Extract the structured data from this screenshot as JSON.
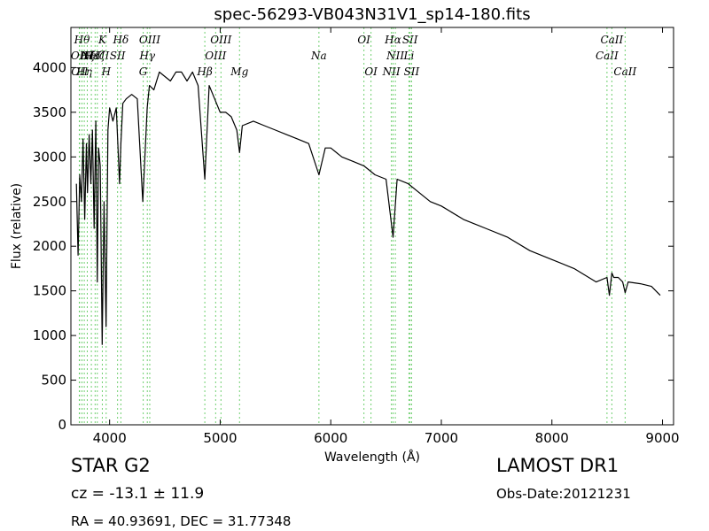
{
  "title": "spec-56293-VB043N31V1_sp14-180.fits",
  "info": {
    "object_class": "STAR   G2",
    "cz": "cz = -13.1 ± 11.9",
    "radec": "RA = 40.93691, DEC = 31.77348",
    "survey": "LAMOST DR1",
    "obs_date": "Obs-Date:20121231"
  },
  "chart_data": {
    "type": "line",
    "xlabel": "Wavelength (Å)",
    "ylabel": "Flux (relative)",
    "xlim": [
      3650,
      9100
    ],
    "ylim": [
      0,
      4450
    ],
    "xticks": [
      4000,
      5000,
      6000,
      7000,
      8000,
      9000
    ],
    "yticks": [
      0,
      500,
      1000,
      1500,
      2000,
      2500,
      3000,
      3500,
      4000
    ],
    "colors": {
      "spectrum": "#000000",
      "line_markers": "#6fcf6f"
    },
    "grid": false,
    "series": [
      {
        "x": [
          3700,
          3715,
          3730,
          3745,
          3760,
          3775,
          3790,
          3800,
          3815,
          3830,
          3845,
          3860,
          3875,
          3889,
          3900,
          3915,
          3933,
          3950,
          3968,
          3985,
          4000,
          4030,
          4060,
          4090,
          4102,
          4120,
          4150,
          4200,
          4250,
          4300,
          4340,
          4360,
          4400,
          4450,
          4500,
          4550,
          4600,
          4650,
          4700,
          4750,
          4800,
          4861,
          4900,
          4950,
          5000,
          5050,
          5100,
          5150,
          5175,
          5200,
          5300,
          5400,
          5500,
          5600,
          5700,
          5800,
          5893,
          5950,
          6000,
          6100,
          6200,
          6300,
          6400,
          6500,
          6563,
          6600,
          6700,
          6800,
          6900,
          7000,
          7200,
          7400,
          7600,
          7800,
          8000,
          8200,
          8400,
          8498,
          8520,
          8542,
          8560,
          8600,
          8640,
          8662,
          8690,
          8800,
          8900,
          8980
        ],
        "y": [
          2700,
          1900,
          2800,
          2500,
          3200,
          2300,
          3150,
          2600,
          3250,
          2700,
          3300,
          2200,
          3400,
          1600,
          3100,
          2900,
          900,
          2500,
          1100,
          3300,
          3550,
          3400,
          3550,
          2700,
          3150,
          3600,
          3650,
          3700,
          3650,
          2500,
          3550,
          3800,
          3750,
          3950,
          3900,
          3850,
          3950,
          3950,
          3850,
          3950,
          3800,
          2750,
          3800,
          3650,
          3500,
          3500,
          3450,
          3300,
          3050,
          3350,
          3400,
          3350,
          3300,
          3250,
          3200,
          3150,
          2800,
          3100,
          3100,
          3000,
          2950,
          2900,
          2800,
          2750,
          2100,
          2750,
          2700,
          2600,
          2500,
          2450,
          2300,
          2200,
          2100,
          1950,
          1850,
          1750,
          1600,
          1650,
          1450,
          1700,
          1650,
          1650,
          1600,
          1480,
          1600,
          1580,
          1550,
          1450
        ]
      }
    ],
    "line_markers": [
      {
        "wavelength": 3726,
        "label": "OII",
        "row": 1
      },
      {
        "wavelength": 3729,
        "label": "OII",
        "row": 2
      },
      {
        "wavelength": 3750,
        "label": "Hθ",
        "row": 0
      },
      {
        "wavelength": 3771,
        "label": "Hη",
        "row": 2
      },
      {
        "wavelength": 3798,
        "label": "Hζ",
        "row": 1
      },
      {
        "wavelength": 3835,
        "label": "Hε",
        "row": 1
      },
      {
        "wavelength": 3869,
        "label": "NeIII",
        "row": 1
      },
      {
        "wavelength": 3889,
        "label": "Hζ",
        "row": 1
      },
      {
        "wavelength": 3934,
        "label": "K",
        "row": 0
      },
      {
        "wavelength": 3969,
        "label": "H",
        "row": 2
      },
      {
        "wavelength": 4072,
        "label": "SII",
        "row": 1
      },
      {
        "wavelength": 4102,
        "label": "Hδ",
        "row": 0
      },
      {
        "wavelength": 4304,
        "label": "G",
        "row": 2
      },
      {
        "wavelength": 4341,
        "label": "Hγ",
        "row": 1
      },
      {
        "wavelength": 4363,
        "label": "OIII",
        "row": 0
      },
      {
        "wavelength": 4861,
        "label": "Hβ",
        "row": 2
      },
      {
        "wavelength": 4959,
        "label": "OIII",
        "row": 1
      },
      {
        "wavelength": 5007,
        "label": "OIII",
        "row": 0
      },
      {
        "wavelength": 5175,
        "label": "Mg",
        "row": 2
      },
      {
        "wavelength": 5893,
        "label": "Na",
        "row": 1
      },
      {
        "wavelength": 6300,
        "label": "OI",
        "row": 0
      },
      {
        "wavelength": 6364,
        "label": "OI",
        "row": 2
      },
      {
        "wavelength": 6548,
        "label": "NII",
        "row": 2
      },
      {
        "wavelength": 6563,
        "label": "Hα",
        "row": 0
      },
      {
        "wavelength": 6584,
        "label": "NII",
        "row": 1
      },
      {
        "wavelength": 6707,
        "label": "Li",
        "row": 1
      },
      {
        "wavelength": 6717,
        "label": "SII",
        "row": 0
      },
      {
        "wavelength": 6731,
        "label": "SII",
        "row": 2
      },
      {
        "wavelength": 8498,
        "label": "CaII",
        "row": 1
      },
      {
        "wavelength": 8542,
        "label": "CaII",
        "row": 0
      },
      {
        "wavelength": 8662,
        "label": "CaII",
        "row": 2
      }
    ]
  }
}
